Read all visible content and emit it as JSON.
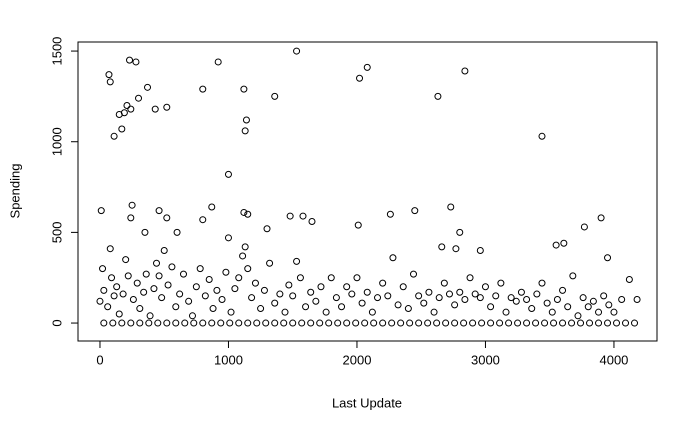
{
  "chart_data": {
    "type": "scatter",
    "x_label": "Last Update",
    "y_label": "Spending",
    "color": "#000000",
    "x": [
      70,
      80,
      110,
      150,
      170,
      190,
      210,
      230,
      240,
      280,
      300,
      370,
      430,
      520,
      800,
      920,
      1000,
      1120,
      1140,
      1130,
      1360,
      1530,
      2020,
      2080,
      2630,
      2840,
      3440,
      10,
      80,
      240,
      250,
      350,
      460,
      520,
      600,
      870,
      800,
      1000,
      1120,
      1150,
      1300,
      1480,
      1580,
      1650,
      2010,
      2260,
      2450,
      2730,
      2800,
      2770,
      3550,
      3900,
      3770,
      3610,
      3950,
      2960,
      2660,
      0,
      20,
      30,
      60,
      90,
      110,
      130,
      150,
      180,
      200,
      220,
      260,
      290,
      310,
      340,
      360,
      390,
      420,
      440,
      460,
      480,
      500,
      530,
      560,
      590,
      620,
      650,
      690,
      720,
      750,
      780,
      820,
      850,
      880,
      910,
      950,
      980,
      1020,
      1050,
      1080,
      1110,
      1130,
      1150,
      1180,
      1210,
      1250,
      1280,
      1320,
      1360,
      1400,
      1440,
      1470,
      1500,
      1530,
      1560,
      1600,
      1640,
      1680,
      1720,
      1760,
      1800,
      1840,
      1880,
      1920,
      1960,
      2000,
      2040,
      2080,
      2120,
      2160,
      2200,
      2240,
      2280,
      2320,
      2360,
      2400,
      2440,
      2480,
      2520,
      2560,
      2600,
      2640,
      2680,
      2720,
      2760,
      2800,
      2840,
      2880,
      2920,
      2960,
      3000,
      3040,
      3080,
      3120,
      3160,
      3200,
      3240,
      3280,
      3320,
      3360,
      3400,
      3440,
      3480,
      3520,
      3560,
      3600,
      3640,
      3680,
      3720,
      3760,
      3800,
      3840,
      3880,
      3920,
      3960,
      4000,
      4060,
      4120,
      4180,
      30,
      100,
      170,
      240,
      310,
      380,
      450,
      520,
      590,
      660,
      730,
      800,
      870,
      940,
      1010,
      1080,
      1150,
      1220,
      1290,
      1360,
      1430,
      1500,
      1570,
      1640,
      1710,
      1780,
      1850,
      1920,
      1990,
      2060,
      2130,
      2200,
      2270,
      2340,
      2410,
      2480,
      2550,
      2620,
      2690,
      2760,
      2830,
      2900,
      2970,
      3040,
      3110,
      3180,
      3250,
      3320,
      3390,
      3460,
      3530,
      3600,
      3670,
      3740,
      3810,
      3880,
      3950,
      4020,
      4090,
      4160
    ],
    "values": [
      1370,
      1330,
      1030,
      1150,
      1070,
      1160,
      1200,
      1450,
      1180,
      1440,
      1240,
      1300,
      1180,
      1190,
      1290,
      1440,
      820,
      1290,
      1120,
      1060,
      1250,
      1500,
      1350,
      1410,
      1250,
      1390,
      1030,
      620,
      410,
      580,
      650,
      500,
      620,
      580,
      500,
      640,
      570,
      470,
      610,
      600,
      520,
      590,
      590,
      560,
      540,
      600,
      620,
      640,
      500,
      410,
      430,
      580,
      530,
      440,
      360,
      400,
      420,
      120,
      300,
      180,
      90,
      250,
      150,
      200,
      50,
      160,
      350,
      260,
      130,
      220,
      80,
      170,
      270,
      40,
      190,
      330,
      260,
      140,
      400,
      210,
      310,
      90,
      160,
      270,
      120,
      40,
      200,
      300,
      150,
      240,
      80,
      180,
      130,
      280,
      60,
      190,
      250,
      370,
      420,
      300,
      140,
      220,
      80,
      180,
      330,
      110,
      160,
      60,
      210,
      150,
      340,
      250,
      90,
      170,
      120,
      200,
      60,
      250,
      140,
      90,
      200,
      160,
      250,
      110,
      170,
      60,
      140,
      220,
      150,
      360,
      100,
      200,
      80,
      270,
      150,
      110,
      170,
      60,
      140,
      220,
      160,
      100,
      170,
      130,
      250,
      160,
      140,
      200,
      90,
      150,
      220,
      60,
      140,
      120,
      170,
      130,
      80,
      160,
      220,
      110,
      60,
      130,
      180,
      90,
      260,
      40,
      140,
      90,
      120,
      60,
      150,
      100,
      60,
      130,
      240,
      130,
      0,
      0,
      0,
      0,
      0,
      0,
      0,
      0,
      0,
      0,
      0,
      0,
      0,
      0,
      0,
      0,
      0,
      0,
      0,
      0,
      0,
      0,
      0,
      0,
      0,
      0,
      0,
      0,
      0,
      0,
      0,
      0,
      0,
      0,
      0,
      0,
      0,
      0,
      0,
      0,
      0,
      0,
      0,
      0,
      0,
      0,
      0,
      0,
      0,
      0,
      0,
      0,
      0,
      0,
      0,
      0,
      0,
      0,
      0,
      0
    ],
    "xlim": [
      -171,
      4335
    ],
    "ylim": [
      -99,
      1550
    ],
    "xticks": [
      0,
      1000,
      2000,
      3000,
      4000
    ],
    "yticks": [
      0,
      500,
      1000,
      1500
    ]
  }
}
